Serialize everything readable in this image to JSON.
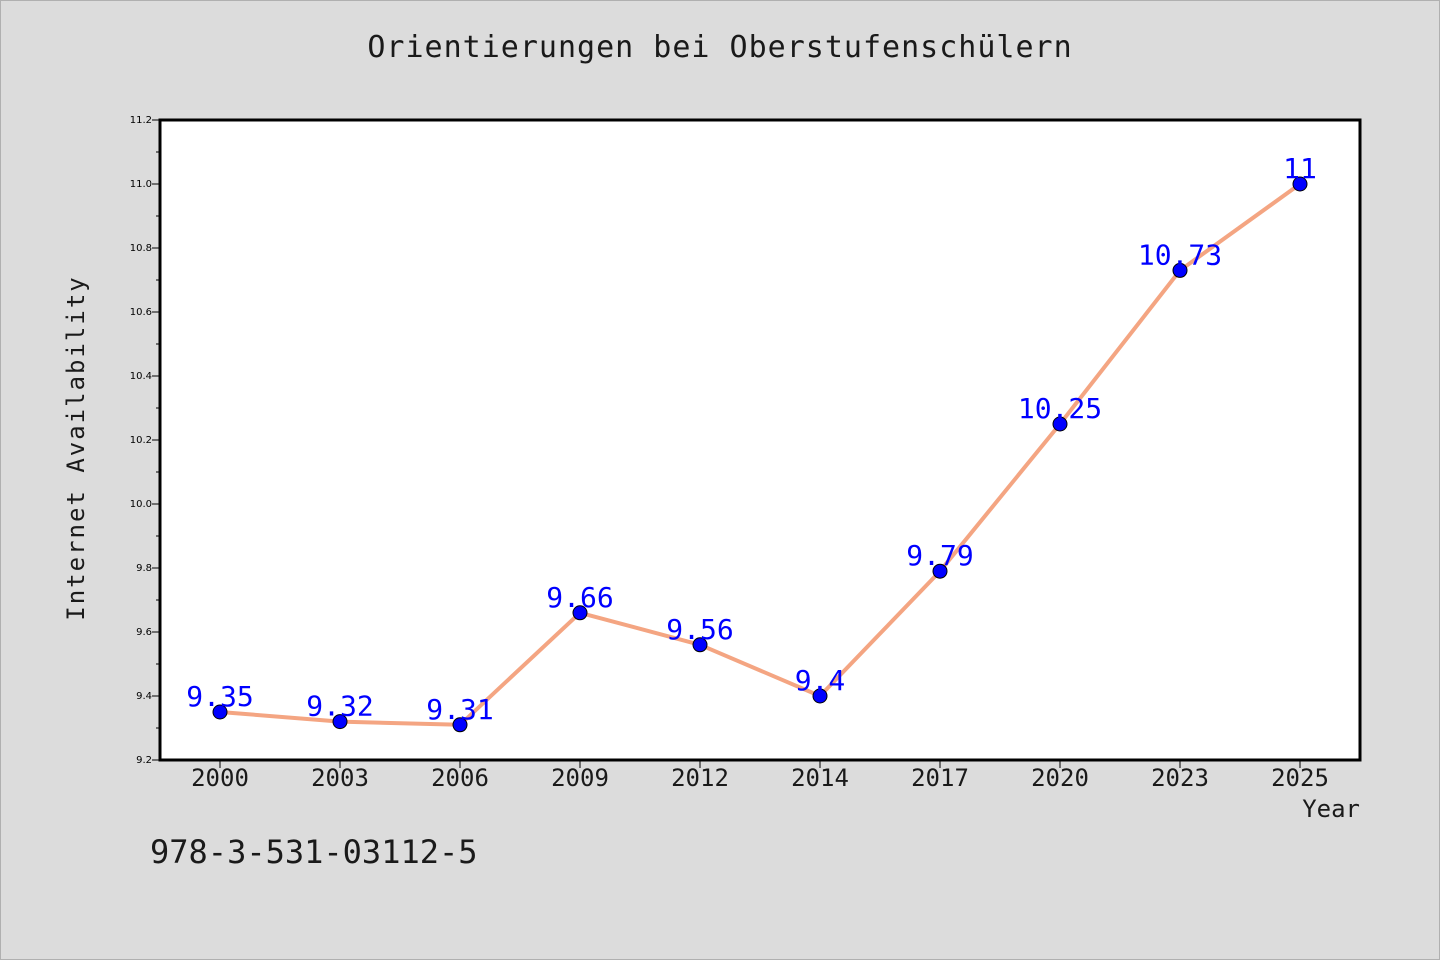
{
  "chart_data": {
    "type": "line",
    "title": "Orientierungen bei Oberstufenschülern",
    "xlabel": "Year",
    "ylabel": "Internet Availability",
    "categories": [
      "2000",
      "2003",
      "2006",
      "2009",
      "2012",
      "2014",
      "2017",
      "2020",
      "2023",
      "2025"
    ],
    "series": [
      {
        "values": [
          9.35,
          9.32,
          9.31,
          9.66,
          9.56,
          9.4,
          9.79,
          10.25,
          10.73,
          11
        ],
        "labels": [
          "9.35",
          "9.32",
          "9.31",
          "9.66",
          "9.56",
          "9.4",
          "9.79",
          "10.25",
          "10.73",
          "11"
        ],
        "line_color": "#f4a582",
        "marker_color": "#0000ff",
        "label_color": "#0000ff"
      }
    ],
    "ylim": [
      9.2,
      11.2
    ],
    "yticks": [
      "9.2",
      "9.4",
      "9.6",
      "9.8",
      "10.0",
      "10.2",
      "10.4",
      "10.6",
      "10.8",
      "11.0",
      "11.2"
    ],
    "grid": false
  },
  "footnote": "978-3-531-03112-5"
}
